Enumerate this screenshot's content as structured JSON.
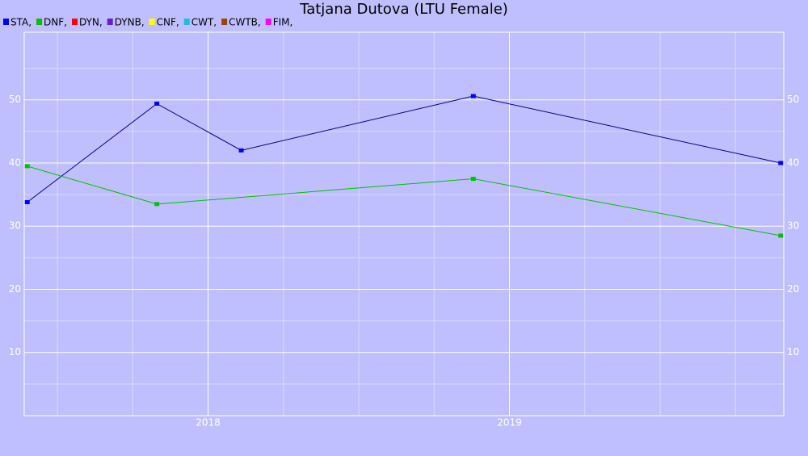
{
  "chart_data": {
    "type": "line",
    "title": "Tatjana Dutova (LTU Female)",
    "series": [
      {
        "name": "STA,",
        "color": "#0000ff",
        "line_color": "#00008b",
        "x": [
          2017.4,
          2017.83,
          2018.11,
          2018.88,
          2019.9
        ],
        "values": [
          33.8,
          49.4,
          42.0,
          50.6,
          40.0
        ]
      },
      {
        "name": "DNF,",
        "color": "#00c000",
        "line_color": "#00c000",
        "x": [
          2017.4,
          2017.83,
          2018.88,
          2019.9
        ],
        "values": [
          39.5,
          33.5,
          37.5,
          28.5
        ]
      },
      {
        "name": "DYN,",
        "color": "#ff0000",
        "line_color": "#ff0000",
        "x": [],
        "values": []
      },
      {
        "name": "DYNB,",
        "color": "#6a1bd8",
        "line_color": "#6a1bd8",
        "x": [],
        "values": []
      },
      {
        "name": "CNF,",
        "color": "#ffff00",
        "line_color": "#ffff00",
        "x": [],
        "values": []
      },
      {
        "name": "CWT,",
        "color": "#22bbdd",
        "line_color": "#22bbdd",
        "x": [],
        "values": []
      },
      {
        "name": "CWTB,",
        "color": "#a04010",
        "line_color": "#a04010",
        "x": [],
        "values": []
      },
      {
        "name": "FIM,",
        "color": "#ff00ff",
        "line_color": "#ff00ff",
        "x": [],
        "values": []
      }
    ],
    "xlim": [
      2017.39,
      2019.91
    ],
    "xticks": [
      2018,
      2019
    ],
    "xminor_ticks": [
      2017.5,
      2017.75,
      2018.25,
      2018.5,
      2018.75,
      2019.25,
      2019.5,
      2019.75
    ],
    "ylim": [
      0,
      60.7
    ],
    "yticks": [
      10,
      20,
      30,
      40,
      50
    ],
    "yminor_ticks": [
      5,
      15,
      25,
      35,
      45,
      55
    ],
    "grid": true,
    "background": "#bfbfff"
  }
}
